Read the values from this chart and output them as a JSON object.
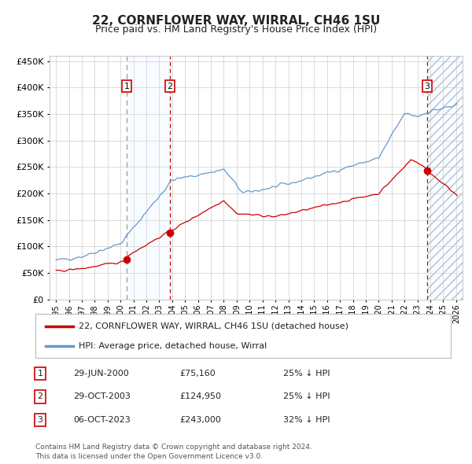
{
  "title": "22, CORNFLOWER WAY, WIRRAL, CH46 1SU",
  "subtitle": "Price paid vs. HM Land Registry's House Price Index (HPI)",
  "hpi_label": "HPI: Average price, detached house, Wirral",
  "price_label": "22, CORNFLOWER WAY, WIRRAL, CH46 1SU (detached house)",
  "footer": "Contains HM Land Registry data © Crown copyright and database right 2024.\nThis data is licensed under the Open Government Licence v3.0.",
  "transactions": [
    {
      "num": 1,
      "date": "29-JUN-2000",
      "price": 75160,
      "pct": "25%",
      "dir": "↓"
    },
    {
      "num": 2,
      "date": "29-OCT-2003",
      "price": 124950,
      "pct": "25%",
      "dir": "↓"
    },
    {
      "num": 3,
      "date": "06-OCT-2023",
      "price": 243000,
      "pct": "32%",
      "dir": "↓"
    }
  ],
  "transaction_dates_decimal": [
    2000.494,
    2003.829,
    2023.764
  ],
  "transaction_prices": [
    75160,
    124950,
    243000
  ],
  "ylim": [
    0,
    460000
  ],
  "yticks": [
    0,
    50000,
    100000,
    150000,
    200000,
    250000,
    300000,
    350000,
    400000,
    450000
  ],
  "xlim_start": 1994.5,
  "xlim_end": 2026.5,
  "hpi_color": "#6699cc",
  "price_color": "#cc0000",
  "marker_color": "#cc0000",
  "vline1_color": "#999999",
  "vline2_color": "#cc0000",
  "vline3_color": "#cc0000",
  "shade_color": "#ddeeff",
  "grid_color": "#cccccc",
  "background_color": "#ffffff",
  "title_fontsize": 11,
  "subtitle_fontsize": 9,
  "tick_fontsize": 7,
  "ytick_fontsize": 8,
  "legend_fontsize": 8,
  "table_fontsize": 8,
  "footer_fontsize": 6.5
}
